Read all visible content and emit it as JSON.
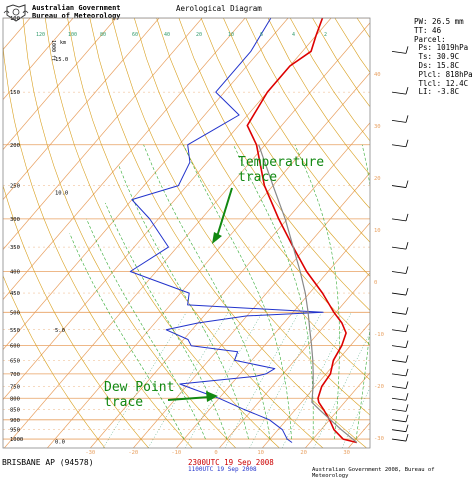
{
  "header": {
    "agency_line1": "Australian Government",
    "agency_line2": "Bureau of Meteorology",
    "title": "Aerological Diagram"
  },
  "indices": [
    {
      "label": "PW:",
      "value": "26.5 mm"
    },
    {
      "label": "TT:",
      "value": "46"
    },
    {
      "label": "Parcel:",
      "value": ""
    },
    {
      "label": " Ps:",
      "value": "1019hPa"
    },
    {
      "label": " Ts:",
      "value": "30.9C"
    },
    {
      "label": " Ds:",
      "value": "15.8C"
    },
    {
      "label": " Plcl:",
      "value": "818hPa"
    },
    {
      "label": " Tlcl:",
      "value": "12.4C"
    },
    {
      "label": " LI:",
      "value": "-3.8C"
    }
  ],
  "annotations": {
    "temperature": [
      "Temperature",
      "trace"
    ],
    "dewpoint": [
      "Dew Point",
      "trace"
    ]
  },
  "footer": {
    "station": "BRISBANE AP (94578)",
    "time_main": "2300UTC 19 Sep 2008",
    "time_sub": "1100UTC 19 Sep 2008",
    "copyright": "Australian Government 2008, Bureau of Meteorology"
  },
  "axis_labels": {
    "height_units": "1000 ft",
    "height_units_alt": "km"
  },
  "colors": {
    "temperature": "#dd0000",
    "dewpoint": "#2233cc",
    "parcel": "#888888",
    "isotherm": "#e8a060",
    "isobar": "#e8a060",
    "dry_adiabat": "#d9a020",
    "moist_adiabat": "#33aa33",
    "mixing_ratio": "#2f9a6a",
    "annotation": "#118811"
  },
  "chart_data": {
    "type": "line",
    "title": "Aerological Diagram",
    "pressure_ticks": [
      100,
      150,
      200,
      250,
      300,
      350,
      400,
      450,
      500,
      550,
      600,
      650,
      700,
      750,
      800,
      850,
      900,
      950,
      1000
    ],
    "isobars": [
      100,
      200,
      300,
      400,
      500,
      600,
      700,
      800,
      900,
      1000
    ],
    "height_ticks": [
      "5.0",
      "10.0",
      "15.0",
      "0.0"
    ],
    "height_tick_pressures": [
      550,
      260,
      125,
      1013
    ],
    "top_temperature_labels": [
      -30,
      -20,
      -10,
      0,
      10,
      20,
      30,
      40
    ],
    "bottom_temperature_labels": [
      -30,
      -20,
      -10,
      0,
      10,
      20,
      30,
      40
    ],
    "right_edge_labels": [
      -30,
      -20,
      -10,
      0,
      10,
      20,
      30,
      40
    ],
    "mixing_ratio_labels": [
      "120",
      "100",
      "80",
      "60",
      "40",
      "20",
      "10",
      "6",
      "4",
      "2"
    ],
    "series": [
      {
        "name": "Temperature trace",
        "pressure": [
          1019,
          1000,
          950,
          900,
          850,
          818,
          800,
          750,
          700,
          650,
          600,
          560,
          530,
          500,
          480,
          450,
          400,
          350,
          300,
          250,
          200,
          180,
          150,
          130,
          120,
          110,
          100
        ],
        "values": [
          30.9,
          27,
          23,
          20,
          16.5,
          14,
          13,
          11.5,
          11,
          9,
          8,
          6.5,
          3.5,
          -0.5,
          -3,
          -7,
          -15,
          -23,
          -32,
          -42,
          -52,
          -58,
          -60,
          -60,
          -58,
          -60,
          -62
        ]
      },
      {
        "name": "Dew Point trace",
        "pressure": [
          1019,
          1000,
          950,
          900,
          850,
          800,
          780,
          760,
          740,
          710,
          700,
          680,
          650,
          620,
          600,
          580,
          550,
          530,
          510,
          500,
          480,
          450,
          400,
          350,
          300,
          270,
          250,
          220,
          200,
          170,
          150,
          120,
          100
        ],
        "values": [
          15.8,
          14,
          11,
          6,
          -2,
          -10,
          -14,
          -18,
          -22,
          -6,
          -4,
          -3,
          -14,
          -15,
          -27,
          -29,
          -36,
          -30,
          -20,
          -3,
          -36,
          -38,
          -56,
          -52,
          -62,
          -70,
          -62,
          -64,
          -68,
          -62,
          -72,
          -72,
          -74
        ]
      },
      {
        "name": "",
        "pressure": [
          1019,
          950,
          900,
          850,
          818,
          750,
          700,
          650,
          600,
          550,
          500,
          450,
          400,
          350,
          300,
          250,
          200
        ],
        "values": [
          30.9,
          24.7,
          20.2,
          15.5,
          12.4,
          9.5,
          7,
          4.2,
          1,
          -2.6,
          -6.5,
          -11,
          -16.5,
          -23,
          -30.5,
          -40,
          -51.5
        ]
      }
    ],
    "ylim": [
      100,
      1050
    ],
    "xlim": [
      -40,
      50
    ]
  }
}
